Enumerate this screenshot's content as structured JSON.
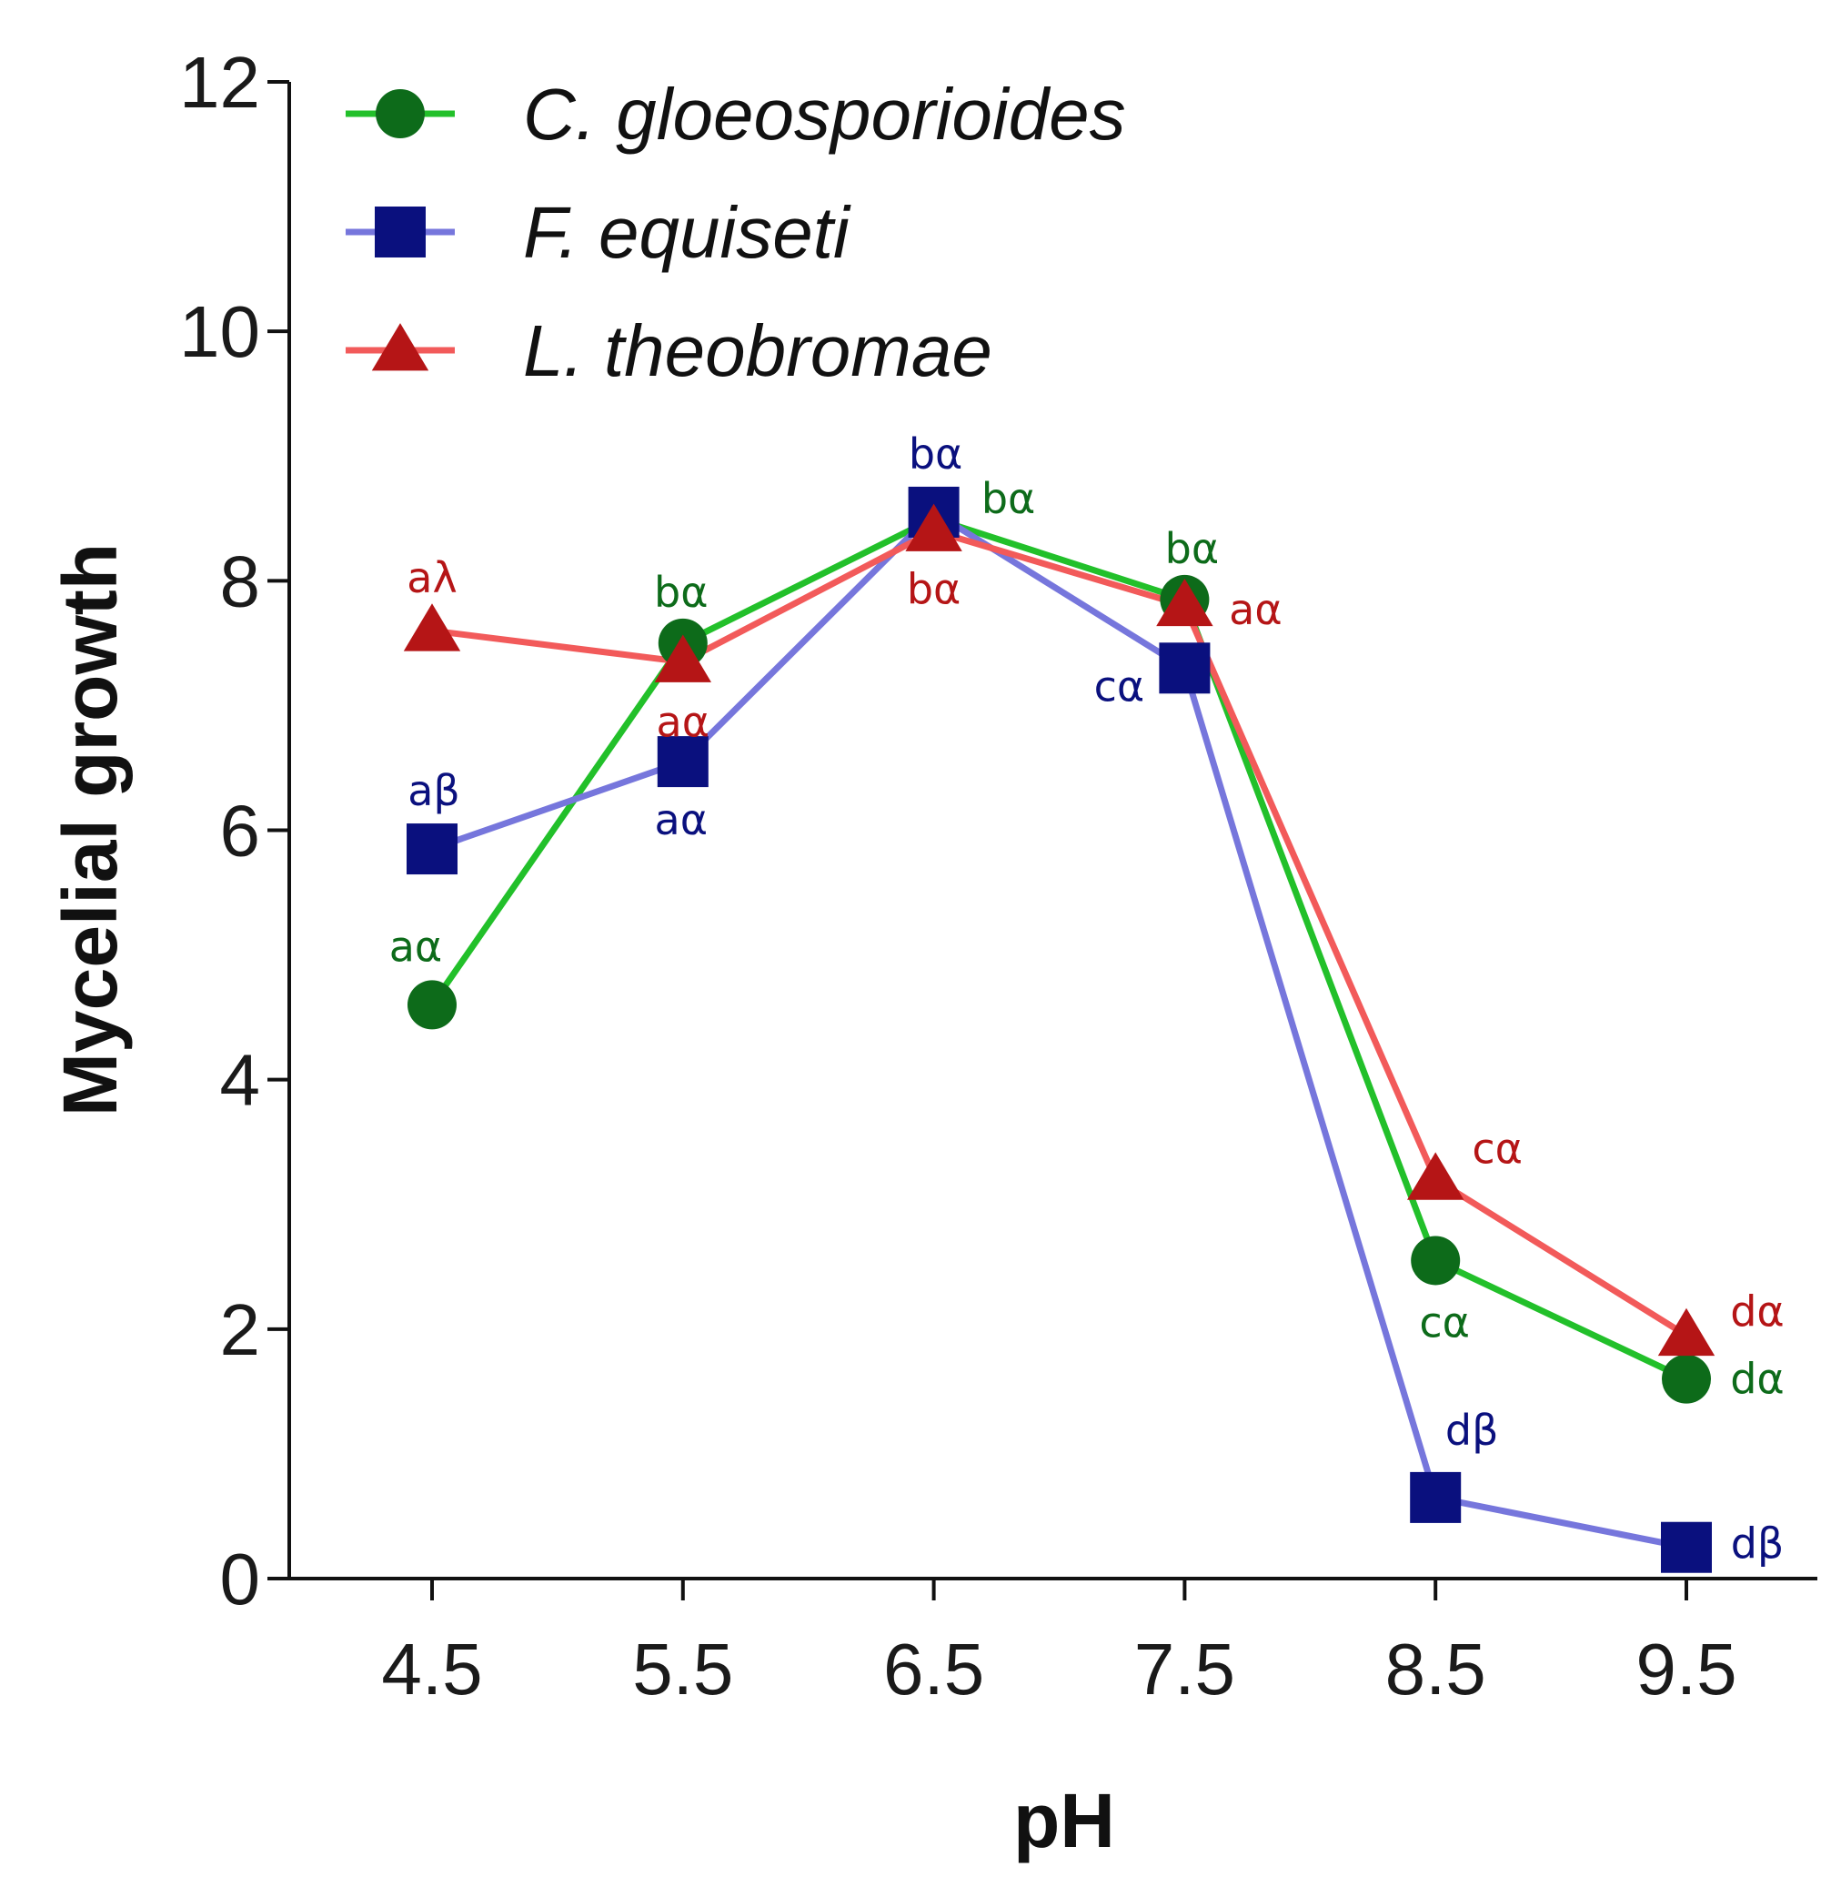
{
  "chart_data": {
    "type": "line",
    "title": "",
    "xlabel": "pH",
    "ylabel": "Mycelial growth",
    "categories": [
      "4.5",
      "5.5",
      "6.5",
      "7.5",
      "8.5",
      "9.5"
    ],
    "ylim": [
      0,
      12
    ],
    "yticks": [
      0,
      2,
      4,
      6,
      8,
      10,
      12
    ],
    "ytick_labels": [
      "0",
      "2",
      "4",
      "6",
      "8",
      "10",
      "12"
    ],
    "grid": false,
    "legend_position": "top-left",
    "series": [
      {
        "name": "C. gloeosporioides",
        "line_color": "#22c02a",
        "marker_color": "#0d6b1a",
        "marker": "circle",
        "values": [
          4.6,
          7.5,
          8.5,
          7.85,
          2.55,
          1.6
        ],
        "labels": [
          "aα",
          "bα",
          "bα",
          "bα",
          "cα",
          "dα"
        ]
      },
      {
        "name": "F. equiseti",
        "line_color": "#7676dc",
        "marker_color": "#0a107e",
        "marker": "square",
        "values": [
          5.85,
          6.55,
          8.55,
          7.3,
          0.65,
          0.25
        ],
        "labels": [
          "aβ",
          "aα",
          "bα",
          "cα",
          "dβ",
          "dβ"
        ]
      },
      {
        "name": "L. theobromae",
        "line_color": "#f25a5a",
        "marker_color": "#b51516",
        "marker": "triangle",
        "values": [
          7.6,
          7.35,
          8.4,
          7.8,
          3.2,
          1.95
        ],
        "labels": [
          "aλ",
          "aα",
          "bα",
          "aα",
          "cα",
          "dα"
        ]
      }
    ]
  }
}
